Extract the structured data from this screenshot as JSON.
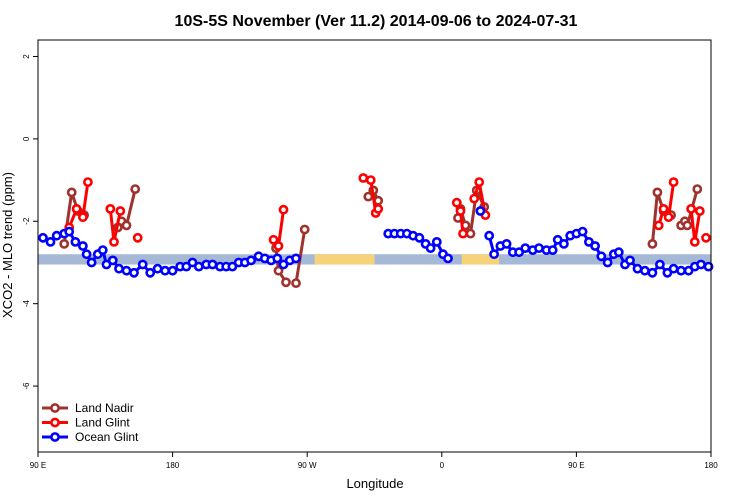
{
  "chart_data": {
    "type": "line",
    "title": "10S-5S November (Ver 11.2)   2014-09-06 to 2024-07-31",
    "xlabel": "Longitude",
    "ylabel": "XCO2 - MLO trend (ppm)",
    "xlim": [
      -90,
      180
    ],
    "ylim": [
      -7.6,
      2.4
    ],
    "xticks": [
      {
        "value": -90,
        "label": "90 E"
      },
      {
        "value": -36,
        "label": "180"
      },
      {
        "value": 18,
        "label": "90 W"
      },
      {
        "value": 72,
        "label": "0"
      },
      {
        "value": 126,
        "label": "90 E"
      },
      {
        "value": 180,
        "label": "180"
      }
    ],
    "yticks": [
      {
        "value": 2,
        "label": "2"
      },
      {
        "value": 0,
        "label": "0"
      },
      {
        "value": -2,
        "label": "-2"
      },
      {
        "value": -4,
        "label": "-4"
      },
      {
        "value": -6,
        "label": "-6"
      }
    ],
    "band": {
      "y_range": [
        -3.05,
        -2.8
      ],
      "color": "#a5b8d6",
      "land_color": "#f6d37a",
      "land_segments": [
        [
          21,
          45
        ],
        [
          80,
          95
        ]
      ]
    },
    "legend": {
      "position": "bottom-left",
      "entries": [
        {
          "name": "Land Nadir",
          "color": "#a0322d"
        },
        {
          "name": "Land Glint",
          "color": "#ff0000"
        },
        {
          "name": "Ocean Glint",
          "color": "#0000ff"
        }
      ]
    },
    "series": [
      {
        "name": "Land Nadir",
        "color": "#a0322d",
        "segments": [
          [
            [
              -79.5,
              -2.55
            ],
            [
              -76.5,
              -1.3
            ],
            [
              -74,
              -1.75
            ],
            [
              -71.5,
              -1.85
            ]
          ],
          [
            [
              -58,
              -2.15
            ],
            [
              -56.5,
              -2.0
            ],
            [
              -54.5,
              -2.1
            ],
            [
              -51,
              -1.22
            ]
          ],
          [
            [
              5.5,
              -2.65
            ],
            [
              6.5,
              -3.2
            ],
            [
              9.5,
              -3.48
            ]
          ],
          [
            [
              13.5,
              -3.5
            ],
            [
              17,
              -2.2
            ]
          ],
          [
            [
              42.5,
              -1.4
            ],
            [
              44.5,
              -1.25
            ],
            [
              46.5,
              -1.5
            ]
          ],
          [
            [
              78.5,
              -1.92
            ],
            [
              79.5,
              -1.7
            ],
            [
              81.5,
              -2.1
            ],
            [
              83.5,
              -2.3
            ],
            [
              86,
              -1.25
            ],
            [
              89,
              -1.65
            ]
          ],
          [
            [
              156.5,
              -2.55
            ],
            [
              158.5,
              -1.3
            ],
            [
              161,
              -1.75
            ],
            [
              164,
              -1.85
            ]
          ],
          [
            [
              168,
              -2.1
            ],
            [
              169.5,
              -2.0
            ],
            [
              170.5,
              -2.1
            ],
            [
              174.5,
              -1.22
            ]
          ]
        ]
      },
      {
        "name": "Land Glint",
        "color": "#ff0000",
        "segments": [
          [
            [
              -77.5,
              -2.15
            ],
            [
              -74.5,
              -1.7
            ],
            [
              -72,
              -1.9
            ],
            [
              -70,
              -1.05
            ]
          ],
          [
            [
              -61,
              -1.7
            ],
            [
              -59.5,
              -2.5
            ],
            [
              -57,
              -1.75
            ]
          ],
          [
            [
              -50,
              -2.4
            ]
          ],
          [
            [
              4.5,
              -2.45
            ],
            [
              6.5,
              -2.6
            ],
            [
              8.5,
              -1.72
            ]
          ],
          [
            [
              40.5,
              -0.95
            ],
            [
              43.5,
              -1.0
            ],
            [
              45.5,
              -1.8
            ],
            [
              46.5,
              -1.7
            ]
          ],
          [
            [
              78,
              -1.55
            ],
            [
              79.5,
              -1.75
            ],
            [
              80.5,
              -2.3
            ]
          ],
          [
            [
              85,
              -1.45
            ],
            [
              87,
              -1.05
            ],
            [
              89.5,
              -1.85
            ]
          ],
          [
            [
              159,
              -2.1
            ],
            [
              161,
              -1.7
            ],
            [
              163,
              -1.9
            ],
            [
              165,
              -1.05
            ]
          ],
          [
            [
              172,
              -1.7
            ],
            [
              173.5,
              -2.5
            ],
            [
              175.5,
              -1.75
            ]
          ],
          [
            [
              178,
              -2.4
            ]
          ]
        ]
      },
      {
        "name": "Ocean Glint",
        "color": "#0000ff",
        "segments": [
          [
            [
              -88,
              -2.4
            ],
            [
              -85,
              -2.5
            ],
            [
              -82.5,
              -2.35
            ],
            [
              -79.5,
              -2.3
            ],
            [
              -77.5,
              -2.25
            ],
            [
              -75,
              -2.5
            ],
            [
              -72,
              -2.6
            ],
            [
              -70.5,
              -2.8
            ],
            [
              -68.5,
              -3.0
            ],
            [
              -66,
              -2.8
            ],
            [
              -64,
              -2.7
            ],
            [
              -62.5,
              -3.05
            ],
            [
              -60,
              -2.95
            ],
            [
              -57.5,
              -3.15
            ],
            [
              -54.5,
              -3.2
            ],
            [
              -51.5,
              -3.25
            ],
            [
              -48,
              -3.05
            ],
            [
              -45,
              -3.25
            ],
            [
              -42,
              -3.15
            ],
            [
              -39,
              -3.2
            ],
            [
              -36,
              -3.2
            ],
            [
              -33,
              -3.1
            ],
            [
              -30.5,
              -3.1
            ],
            [
              -28,
              -3.0
            ],
            [
              -25.5,
              -3.1
            ],
            [
              -22.5,
              -3.05
            ],
            [
              -20,
              -3.05
            ],
            [
              -17,
              -3.1
            ],
            [
              -14.5,
              -3.1
            ],
            [
              -12,
              -3.1
            ],
            [
              -9.5,
              -3.0
            ],
            [
              -7,
              -3.0
            ],
            [
              -4.5,
              -2.95
            ],
            [
              -1.5,
              -2.85
            ],
            [
              1,
              -2.9
            ],
            [
              3.5,
              -2.95
            ],
            [
              6,
              -2.9
            ],
            [
              8.5,
              -3.05
            ],
            [
              11,
              -2.95
            ],
            [
              13.5,
              -2.9
            ]
          ],
          [
            [
              50.5,
              -2.3
            ],
            [
              53,
              -2.3
            ],
            [
              55.5,
              -2.3
            ],
            [
              58,
              -2.3
            ],
            [
              60.5,
              -2.35
            ],
            [
              63,
              -2.4
            ],
            [
              65.5,
              -2.55
            ],
            [
              67.5,
              -2.65
            ],
            [
              70,
              -2.5
            ],
            [
              72.5,
              -2.8
            ],
            [
              74.5,
              -2.9
            ]
          ],
          [
            [
              87.5,
              -1.75
            ]
          ],
          [
            [
              91,
              -2.35
            ],
            [
              93,
              -2.8
            ],
            [
              95.5,
              -2.6
            ],
            [
              98,
              -2.55
            ],
            [
              100.5,
              -2.75
            ],
            [
              103,
              -2.75
            ],
            [
              105.5,
              -2.65
            ],
            [
              108.5,
              -2.7
            ],
            [
              111,
              -2.65
            ],
            [
              114,
              -2.7
            ],
            [
              116.5,
              -2.7
            ],
            [
              118.5,
              -2.45
            ],
            [
              121,
              -2.55
            ],
            [
              123.5,
              -2.35
            ],
            [
              126,
              -2.3
            ],
            [
              128.5,
              -2.25
            ],
            [
              131,
              -2.5
            ],
            [
              133.5,
              -2.6
            ],
            [
              136,
              -2.85
            ],
            [
              138.5,
              -3.0
            ],
            [
              141,
              -2.8
            ],
            [
              143,
              -2.75
            ],
            [
              145.5,
              -3.05
            ],
            [
              147.5,
              -2.95
            ],
            [
              150.5,
              -3.15
            ],
            [
              153.5,
              -3.2
            ],
            [
              156.5,
              -3.25
            ],
            [
              159.5,
              -3.05
            ],
            [
              162.5,
              -3.25
            ],
            [
              165,
              -3.15
            ],
            [
              168,
              -3.2
            ],
            [
              171,
              -3.2
            ],
            [
              173.5,
              -3.1
            ],
            [
              176,
              -3.05
            ],
            [
              179,
              -3.1
            ]
          ]
        ]
      }
    ]
  }
}
